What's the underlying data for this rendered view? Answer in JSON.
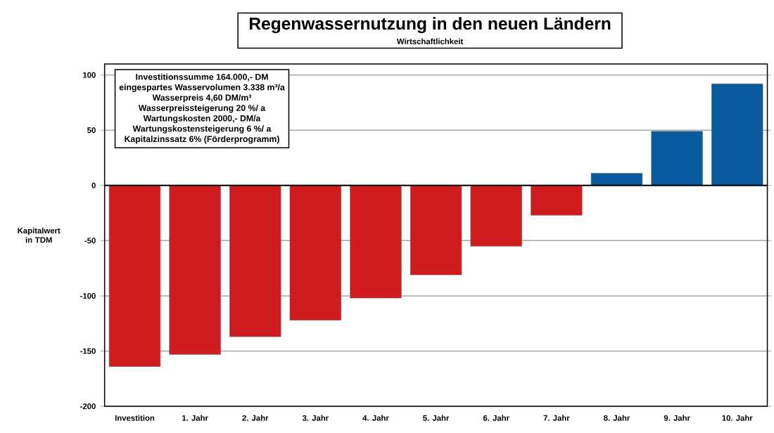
{
  "chart_data": {
    "type": "bar",
    "title": "Regenwassernutzung in den neuen Ländern",
    "subtitle": "Wirtschaftlichkeit",
    "ylabel": "Kapitalwert in TDM",
    "annotations": [
      "Investitionssumme 164.000,- DM",
      "eingespartes Wasservolumen 3.338 m³/a",
      "Wasserpreis 4,60 DM/m³",
      "Wasserpreissteigerung 20 %/ a",
      "Wartungskosten 2000,- DM/a",
      "Wartungskostensteigerung 6 %/ a",
      "Kapitalzinssatz 6% (Förderprogramm)"
    ],
    "categories": [
      "Investition",
      "1. Jahr",
      "2. Jahr",
      "3. Jahr",
      "4. Jahr",
      "5. Jahr",
      "6. Jahr",
      "7. Jahr",
      "8. Jahr",
      "9. Jahr",
      "10. Jahr"
    ],
    "values": [
      -164,
      -153,
      -137,
      -122,
      -102,
      -81,
      -55,
      -27,
      11,
      49,
      92
    ],
    "colors": [
      "#d01c1f",
      "#d01c1f",
      "#d01c1f",
      "#d01c1f",
      "#d01c1f",
      "#d01c1f",
      "#d01c1f",
      "#d01c1f",
      "#0a5a9e",
      "#0a5a9e",
      "#0a5a9e"
    ],
    "ylim": [
      -200,
      110
    ],
    "yticks": [
      -200,
      -150,
      -100,
      -50,
      0,
      50,
      100
    ],
    "grid": "y"
  }
}
